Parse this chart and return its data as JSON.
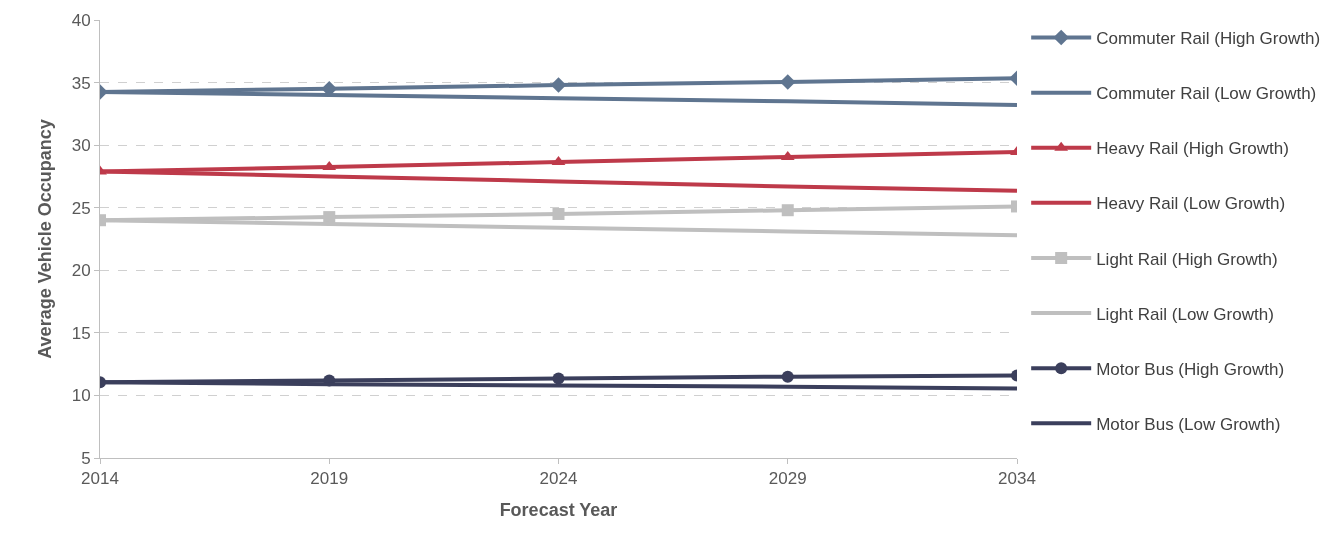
{
  "chart_data": {
    "type": "line",
    "xlabel": "Forecast Year",
    "ylabel": "Average Vehicle Occupancy",
    "x": [
      2014,
      2019,
      2024,
      2029,
      2034
    ],
    "xlim": [
      2014,
      2034
    ],
    "xticks": [
      2014,
      2019,
      2024,
      2029,
      2034
    ],
    "ylim": [
      5,
      40
    ],
    "yticks": [
      5,
      10,
      15,
      20,
      25,
      30,
      35,
      40
    ],
    "grid": "y",
    "legend": "right",
    "line_style": "solid",
    "series": [
      {
        "name": "Commuter Rail (High Growth)",
        "color": "#5f7590",
        "marker": "diamond",
        "values": [
          34.25,
          34.5,
          34.8,
          35.05,
          35.35
        ]
      },
      {
        "name": "Commuter Rail (Low Growth)",
        "color": "#5f7590",
        "marker": "none",
        "values": [
          34.25,
          34.0,
          33.75,
          33.5,
          33.2
        ]
      },
      {
        "name": "Heavy Rail (High Growth)",
        "color": "#be3a4a",
        "marker": "triangle",
        "values": [
          27.9,
          28.25,
          28.65,
          29.05,
          29.45
        ]
      },
      {
        "name": "Heavy Rail (Low Growth)",
        "color": "#be3a4a",
        "marker": "none",
        "values": [
          27.9,
          27.5,
          27.1,
          26.7,
          26.35
        ]
      },
      {
        "name": "Light Rail (High Growth)",
        "color": "#bfbfbf",
        "marker": "square",
        "values": [
          24.0,
          24.25,
          24.5,
          24.8,
          25.1
        ]
      },
      {
        "name": "Light Rail (Low Growth)",
        "color": "#bfbfbf",
        "marker": "none",
        "values": [
          24.0,
          23.7,
          23.4,
          23.1,
          22.8
        ]
      },
      {
        "name": "Motor Bus (High Growth)",
        "color": "#3b3f5c",
        "marker": "circle",
        "values": [
          11.05,
          11.2,
          11.35,
          11.5,
          11.6
        ]
      },
      {
        "name": "Motor Bus (Low Growth)",
        "color": "#3b3f5c",
        "marker": "none",
        "values": [
          11.05,
          10.9,
          10.8,
          10.7,
          10.55
        ]
      }
    ]
  }
}
